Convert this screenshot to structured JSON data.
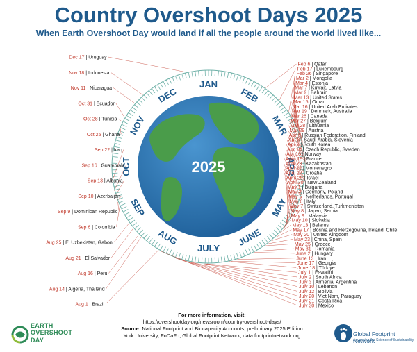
{
  "title": "Country Overshoot Days 2025",
  "subtitle": "When Earth Overshoot Day would land if all the people around the world lived like...",
  "center_year": "2025",
  "months": [
    "JAN",
    "FEB",
    "MAR",
    "APR",
    "MAY",
    "JUNE",
    "JULY",
    "AUG",
    "SEP",
    "OCT",
    "NOV",
    "DEC"
  ],
  "countries": [
    {
      "date": "Feb 6",
      "name": "Qatar"
    },
    {
      "date": "Feb 17",
      "name": "Luxembourg"
    },
    {
      "date": "Feb 26",
      "name": "Singapore"
    },
    {
      "date": "Mar 2",
      "name": "Mongolia"
    },
    {
      "date": "Mar 4",
      "name": "Estonia"
    },
    {
      "date": "Mar 7",
      "name": "Kuwait, Latvia"
    },
    {
      "date": "Mar 9",
      "name": "Bahrain"
    },
    {
      "date": "Mar 13",
      "name": "United States"
    },
    {
      "date": "Mar 15",
      "name": "Oman"
    },
    {
      "date": "Mar 16",
      "name": "United Arab Emirates"
    },
    {
      "date": "Mar 19",
      "name": "Denmark, Australia"
    },
    {
      "date": "Mar 26",
      "name": "Canada"
    },
    {
      "date": "Mar 27",
      "name": "Belgium"
    },
    {
      "date": "Mar 28",
      "name": "Lithuania"
    },
    {
      "date": "Mar 29",
      "name": "Austria"
    },
    {
      "date": "Apr 6",
      "name": "Russian Federation, Finland"
    },
    {
      "date": "Apr 8",
      "name": "Saudi Arabia, Slovenia"
    },
    {
      "date": "Apr 9",
      "name": "South Korea"
    },
    {
      "date": "Apr 10",
      "name": "Czech Republic, Sweden"
    },
    {
      "date": "Apr 16",
      "name": "Norway"
    },
    {
      "date": "April 19",
      "name": "France"
    },
    {
      "date": "April 23",
      "name": "Kazakhstan"
    },
    {
      "date": "April 24",
      "name": "Montenegro"
    },
    {
      "date": "April 27",
      "name": "Croatia"
    },
    {
      "date": "April 29",
      "name": "Israel"
    },
    {
      "date": "April 30",
      "name": "New Zealand"
    },
    {
      "date": "May 1",
      "name": "Bulgaria"
    },
    {
      "date": "May 3",
      "name": "Germany, Poland"
    },
    {
      "date": "May 5",
      "name": "Netherlands, Portugal"
    },
    {
      "date": "May 6",
      "name": "Italy"
    },
    {
      "date": "May 7",
      "name": "Switzerland, Turkmenistan"
    },
    {
      "date": "May 8",
      "name": "Japan, Serbia"
    },
    {
      "date": "May 9",
      "name": "Malaysia"
    },
    {
      "date": "May 10",
      "name": "Slovakia"
    },
    {
      "date": "May 13",
      "name": "Belarus"
    },
    {
      "date": "May 17",
      "name": "Bosnia and Herzegovina, Ireland, Chile"
    },
    {
      "date": "May 20",
      "name": "United Kingdom"
    },
    {
      "date": "May 23",
      "name": "China, Spain"
    },
    {
      "date": "May 25",
      "name": "Greece"
    },
    {
      "date": "May 31",
      "name": "Romania"
    },
    {
      "date": "June 2",
      "name": "Hungary"
    },
    {
      "date": "June 13",
      "name": "Iran"
    },
    {
      "date": "June 17",
      "name": "Georgia"
    },
    {
      "date": "June 18",
      "name": "Türkiye"
    },
    {
      "date": "July 1",
      "name": "Eswatini"
    },
    {
      "date": "July 2",
      "name": "South Africa"
    },
    {
      "date": "July 3",
      "name": "Armenia, Argentina"
    },
    {
      "date": "July 10",
      "name": "Lebanon"
    },
    {
      "date": "July 12",
      "name": "Bolivia"
    },
    {
      "date": "July 20",
      "name": "Viet Nam, Paraguay"
    },
    {
      "date": "July 21",
      "name": "Costa Rica"
    },
    {
      "date": "July 30",
      "name": "Mexico"
    },
    {
      "date": "Aug 1",
      "name": "Brazil"
    },
    {
      "date": "Aug 14",
      "name": "Algeria, Thailand"
    },
    {
      "date": "Aug 16",
      "name": "Peru"
    },
    {
      "date": "Aug 21",
      "name": "El Salvador"
    },
    {
      "date": "Aug 25",
      "name": "El Uzbekistan, Gabon"
    },
    {
      "date": "Sep 6",
      "name": "Colombia"
    },
    {
      "date": "Sep 9",
      "name": "Dominican Republic"
    },
    {
      "date": "Sep 10",
      "name": "Azerbaijan"
    },
    {
      "date": "Sep 13",
      "name": "Albania"
    },
    {
      "date": "Sep 16",
      "name": "Guatemala"
    },
    {
      "date": "Sep 22",
      "name": "Iraq"
    },
    {
      "date": "Oct 25",
      "name": "Ghana"
    },
    {
      "date": "Oct 28",
      "name": "Tunisia"
    },
    {
      "date": "Oct 31",
      "name": "Ecuador"
    },
    {
      "date": "Nov 11",
      "name": "Nicaragua"
    },
    {
      "date": "Nov 18",
      "name": "Indonesia"
    },
    {
      "date": "Dec 17",
      "name": "Uruguay"
    }
  ],
  "footer": {
    "more_info": "For more information, visit:",
    "url": "https://overshootday.org/newsroom/country-overshoot-days/",
    "source_label": "Source:",
    "source_text": "National Footprint and Biocapacity Accounts, preliminary 2025 Edition",
    "source_text2": "York University, FoDaFo, Global Footprint Network, data.footprintnetwork.org"
  },
  "logos": {
    "eod_line1": "EARTH",
    "eod_line2": "OVERSHOOT",
    "eod_line3": "DAY",
    "gfn_name": "Global Footprint Network",
    "gfn_tagline": "Advancing the Science of Sustainability"
  },
  "colors": {
    "title": "#1f5a8c",
    "ocean": "#2f78b8",
    "land": "#4a9c4a",
    "date": "#c0392b",
    "ring": "#6fb1a8"
  }
}
